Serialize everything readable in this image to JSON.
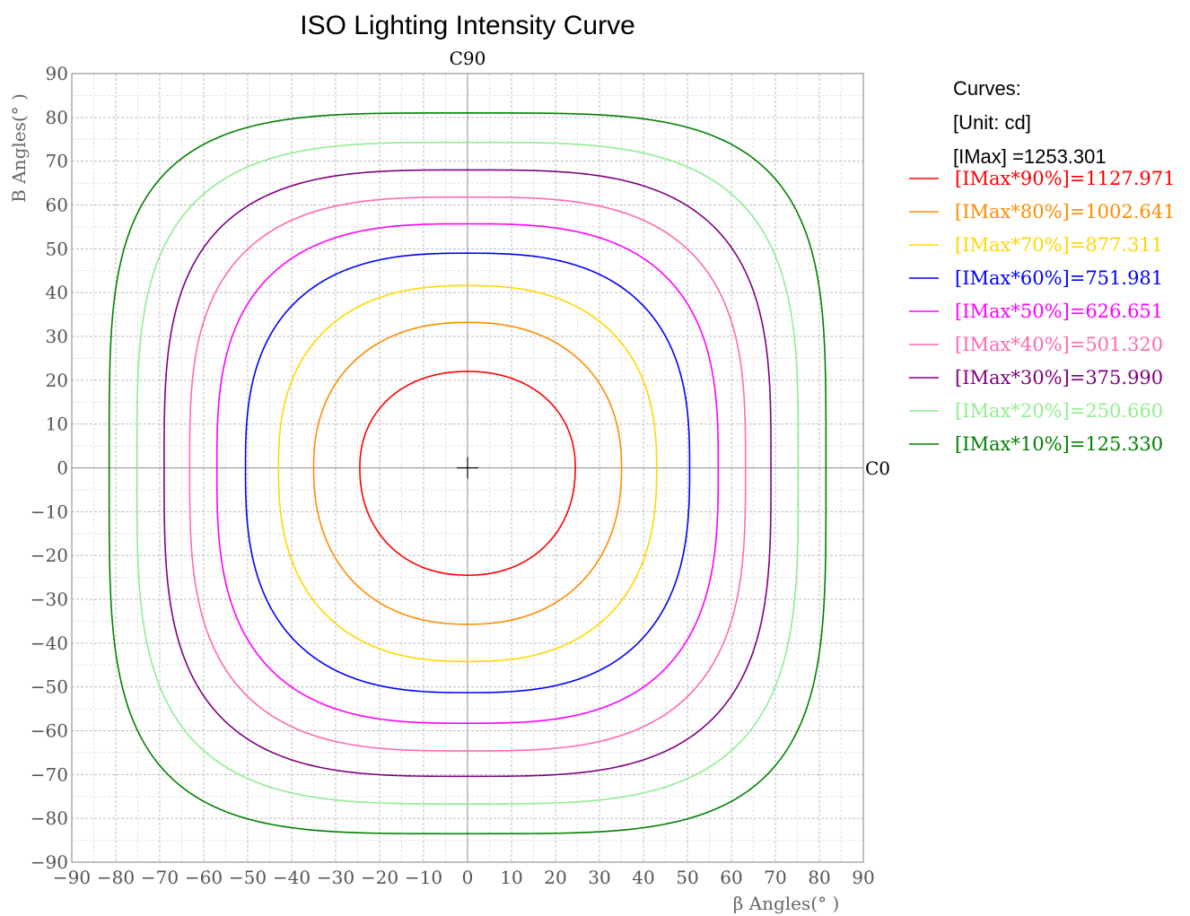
{
  "chart_data": {
    "type": "line",
    "title": "ISO Lighting Intensity Curve",
    "xlabel": "β  Angles(° )",
    "ylabel": "B Angles(° )",
    "xlim": [
      -90,
      90
    ],
    "ylim": [
      -90,
      90
    ],
    "xticks": [
      -90,
      -80,
      -70,
      -60,
      -50,
      -40,
      -30,
      -20,
      -10,
      0,
      10,
      20,
      30,
      40,
      50,
      60,
      70,
      80,
      90
    ],
    "yticks": [
      -90,
      -80,
      -70,
      -60,
      -50,
      -40,
      -30,
      -20,
      -10,
      0,
      10,
      20,
      30,
      40,
      50,
      60,
      70,
      80,
      90
    ],
    "x_tick_labels": [
      "−90",
      "−80",
      "−70",
      "−60",
      "−50",
      "−40",
      "−30",
      "−20",
      "−10",
      "0",
      "10",
      "20",
      "30",
      "40",
      "50",
      "60",
      "70",
      "80",
      "90"
    ],
    "y_tick_labels": [
      "−90",
      "−80",
      "−70",
      "−60",
      "−50",
      "−40",
      "−30",
      "−20",
      "−10",
      "0",
      "10",
      "20",
      "30",
      "40",
      "50",
      "60",
      "70",
      "80",
      "90"
    ],
    "grid": true,
    "grid_minor": true,
    "center_marker": "cross",
    "direction_labels": {
      "top": "C90",
      "right": "C0"
    },
    "legend": {
      "placement": "right",
      "header": [
        "Curves:",
        "[Unit: cd]",
        "[IMax]    =1253.301"
      ]
    },
    "series": [
      {
        "name": "[IMax*90%]=1127.971",
        "color": "#ff0000",
        "right": 24.5,
        "top": 22,
        "left": 24.5,
        "bottom": 24.5,
        "n": 2.15
      },
      {
        "name": "[IMax*80%]=1002.641",
        "color": "#ff8c00",
        "right": 35,
        "top": 33.2,
        "left": 35,
        "bottom": 35.7,
        "n": 2.25
      },
      {
        "name": "[IMax*70%]=877.311",
        "color": "#ffd700",
        "right": 43,
        "top": 41.6,
        "left": 43,
        "bottom": 44.2,
        "n": 2.45
      },
      {
        "name": "[IMax*60%]=751.981",
        "color": "#0000ff",
        "right": 50.5,
        "top": 49,
        "left": 50.5,
        "bottom": 51.3,
        "n": 2.7
      },
      {
        "name": "[IMax*50%]=626.651",
        "color": "#ff00ff",
        "right": 57,
        "top": 55.7,
        "left": 57,
        "bottom": 58.3,
        "n": 2.9
      },
      {
        "name": "[IMax*40%]=501.320",
        "color": "#ff69b4",
        "right": 63.2,
        "top": 61.8,
        "left": 63.2,
        "bottom": 64.6,
        "n": 3.1
      },
      {
        "name": "[IMax*30%]=375.990",
        "color": "#800080",
        "right": 69,
        "top": 68,
        "left": 69,
        "bottom": 70.4,
        "n": 3.3
      },
      {
        "name": "[IMax*20%]=250.660",
        "color": "#90ee90",
        "right": 75.2,
        "top": 74.3,
        "left": 75.2,
        "bottom": 76.7,
        "n": 3.5
      },
      {
        "name": "[IMax*10%]=125.330",
        "color": "#008000",
        "right": 81.5,
        "top": 81,
        "left": 81.5,
        "bottom": 83.5,
        "n": 3.9
      }
    ]
  }
}
